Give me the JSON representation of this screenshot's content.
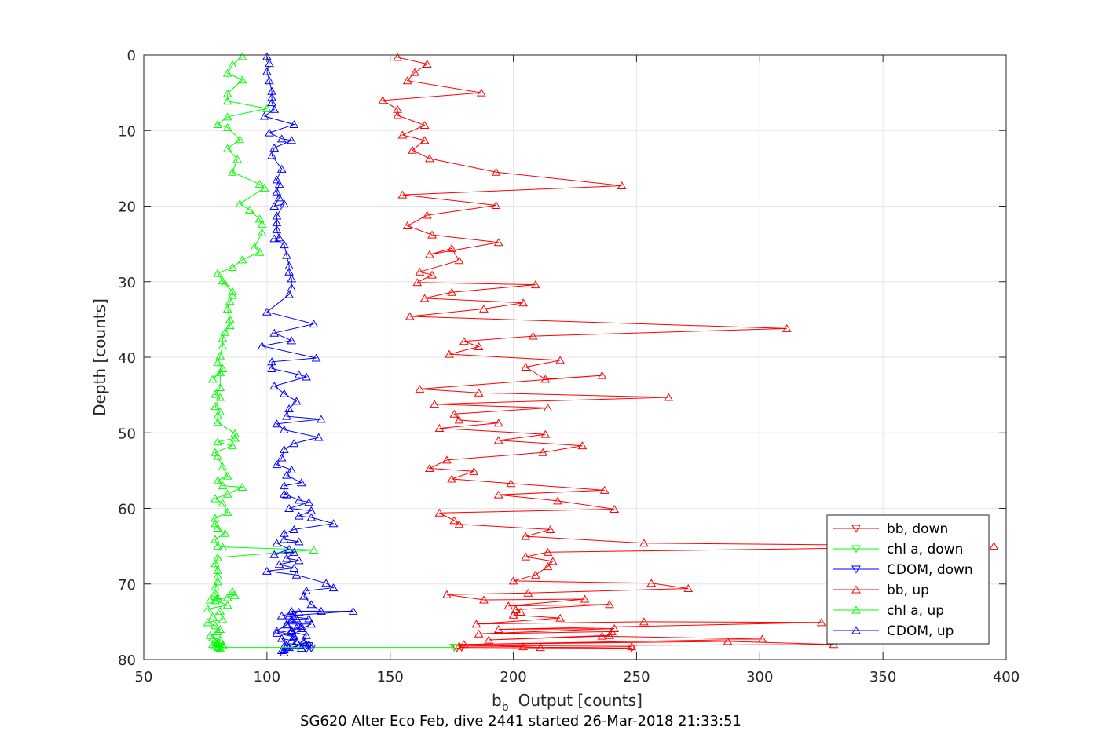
{
  "chart_data": {
    "type": "line",
    "xlabel_main": "b",
    "xlabel_sub": "b",
    "xlabel_rest": "Output [counts]",
    "ylabel": "Depth [counts]",
    "caption": "SG620 Alter Eco Feb, dive 2441 started 26-Mar-2018 21:33:51",
    "xlim": [
      50,
      400
    ],
    "ylim": [
      0,
      80
    ],
    "y_reversed": true,
    "grid": true,
    "xticks": [
      "50",
      "100",
      "150",
      "200",
      "250",
      "300",
      "350",
      "400"
    ],
    "yticks": [
      "0",
      "10",
      "20",
      "30",
      "40",
      "50",
      "60",
      "70",
      "80"
    ],
    "legend_position": "bottom-right",
    "series": [
      {
        "name": "bb, down",
        "color": "#ff0000",
        "marker": "triangle-down",
        "x": [
          177,
          179,
          248
        ],
        "y": [
          78.5,
          78.4,
          78.5
        ]
      },
      {
        "name": "chl a, down",
        "color": "#00ff00",
        "marker": "triangle-down",
        "x": [
          80,
          81,
          176
        ],
        "y": [
          78.6,
          78.4,
          78.4
        ]
      },
      {
        "name": "CDOM, down",
        "color": "#0000ff",
        "marker": "triangle-down",
        "x": [
          116,
          117,
          118
        ],
        "y": [
          78.6,
          78.2,
          78.5
        ]
      },
      {
        "name": "bb, up",
        "color": "#ff0000",
        "marker": "triangle-up",
        "x": [
          153,
          165,
          160,
          157,
          187,
          147,
          153,
          153,
          164,
          155,
          164,
          159,
          166,
          193,
          244,
          155,
          193,
          165,
          157,
          167,
          194,
          166,
          175,
          178,
          162,
          167,
          161,
          209,
          175,
          164,
          204,
          188,
          158,
          311,
          208,
          180,
          186,
          174,
          219,
          205,
          213,
          236,
          162,
          186,
          263,
          168,
          214,
          176,
          178,
          194,
          170,
          213,
          194,
          228,
          212,
          173,
          166,
          184,
          175,
          199,
          237,
          194,
          218,
          241,
          170,
          176,
          178,
          215,
          205,
          253,
          395,
          214,
          205,
          216,
          214,
          209,
          200,
          256,
          271,
          206,
          173,
          188,
          229,
          198,
          239,
          201,
          203,
          200,
          219,
          185,
          253,
          325,
          194,
          241,
          186,
          240,
          239,
          190,
          236,
          301,
          180,
          287,
          330,
          178,
          204,
          211,
          248
        ],
        "y": [
          0.3,
          1.2,
          2.3,
          3.4,
          5.0,
          6.0,
          7.2,
          8.0,
          9.3,
          10.6,
          11.3,
          12.6,
          13.7,
          15.5,
          17.3,
          18.5,
          19.9,
          21.2,
          22.6,
          23.8,
          24.8,
          26.4,
          25.6,
          27.2,
          28.7,
          29.1,
          30.1,
          30.4,
          31.4,
          32.2,
          32.8,
          33.6,
          34.6,
          36.2,
          37.2,
          37.9,
          38.6,
          39.6,
          40.4,
          41.3,
          42.9,
          42.4,
          44.2,
          44.7,
          45.3,
          46.2,
          46.7,
          47.5,
          48.3,
          48.7,
          49.4,
          50.2,
          51.0,
          51.7,
          52.6,
          53.6,
          54.7,
          55.1,
          56.1,
          56.7,
          57.6,
          58.2,
          59.0,
          60.1,
          60.6,
          61.6,
          62.1,
          62.8,
          63.7,
          64.6,
          65.0,
          65.8,
          66.4,
          67.0,
          67.7,
          68.8,
          69.6,
          69.9,
          70.6,
          71.2,
          71.4,
          72.1,
          72.0,
          72.9,
          72.7,
          73.4,
          73.7,
          74.1,
          74.5,
          75.3,
          75.0,
          75.1,
          76.0,
          75.9,
          76.6,
          76.3,
          76.8,
          77.4,
          76.9,
          77.3,
          78.0,
          77.6,
          78.0,
          78.2,
          78.3,
          78.4,
          78.3
        ]
      },
      {
        "name": "chl a, up",
        "color": "#00ff00",
        "marker": "triangle-up",
        "x": [
          90,
          86,
          84,
          90,
          84,
          84,
          100,
          84,
          80,
          84,
          89,
          84,
          88,
          86,
          97,
          99,
          89,
          93,
          97,
          98,
          98,
          95,
          97,
          90,
          86,
          80,
          83,
          82,
          86,
          86,
          85,
          84,
          85,
          85,
          83,
          82,
          82,
          81,
          80,
          82,
          78,
          81,
          81,
          79,
          81,
          79,
          81,
          80,
          80,
          87,
          87,
          80,
          86,
          79,
          80,
          82,
          84,
          80,
          82,
          90,
          84,
          79,
          82,
          84,
          79,
          79,
          80,
          83,
          79,
          80,
          82,
          119,
          80,
          79,
          80,
          80,
          80,
          79,
          79,
          80,
          77,
          84,
          86,
          87,
          79,
          84,
          76,
          78,
          81,
          82,
          76,
          79,
          81,
          80,
          77,
          78,
          81,
          80,
          78,
          79,
          81,
          80,
          82,
          81,
          79,
          80,
          82
        ],
        "y": [
          0.2,
          1.3,
          2.4,
          3.3,
          5.1,
          6.1,
          7.1,
          8.2,
          9.2,
          9.6,
          11.2,
          12.4,
          13.8,
          15.5,
          17.1,
          17.6,
          19.7,
          20.5,
          21.7,
          22.4,
          23.5,
          25.4,
          26.1,
          27.1,
          28.1,
          28.9,
          30.3,
          29.9,
          31.3,
          31.8,
          32.6,
          33.6,
          35.0,
          35.8,
          36.7,
          37.5,
          38.5,
          39.8,
          40.7,
          41.5,
          42.9,
          42.0,
          44.0,
          44.9,
          45.3,
          46.5,
          47.2,
          47.7,
          48.6,
          50.1,
          50.7,
          51.2,
          51.7,
          52.6,
          53.1,
          54.5,
          55.7,
          56.3,
          57.0,
          57.2,
          58.1,
          58.7,
          59.3,
          60.5,
          61.3,
          62.0,
          62.6,
          63.3,
          64.1,
          65.0,
          65.1,
          65.5,
          66.5,
          67.3,
          68.2,
          68.9,
          69.7,
          70.4,
          71.2,
          71.9,
          72.1,
          71.8,
          71.0,
          71.5,
          72.2,
          72.8,
          73.3,
          74.3,
          73.6,
          74.7,
          75.1,
          75.5,
          76.0,
          76.3,
          76.8,
          77.1,
          77.4,
          77.8,
          78.0,
          77.7,
          77.4,
          78.3,
          78.0,
          78.5,
          78.2,
          78.4,
          78.2
        ]
      },
      {
        "name": "CDOM, up",
        "color": "#0000ff",
        "marker": "triangle-up",
        "x": [
          100,
          101,
          100,
          101,
          102,
          102,
          102,
          103,
          99,
          111,
          101,
          106,
          110,
          103,
          102,
          106,
          104,
          105,
          104,
          105,
          103,
          107,
          104,
          104,
          104,
          105,
          103,
          107,
          108,
          109,
          109,
          110,
          110,
          109,
          100,
          119,
          103,
          110,
          98,
          120,
          102,
          102,
          113,
          116,
          103,
          107,
          112,
          109,
          108,
          122,
          104,
          107,
          121,
          111,
          107,
          106,
          104,
          110,
          108,
          114,
          107,
          107,
          108,
          113,
          117,
          109,
          118,
          113,
          118,
          127,
          111,
          107,
          107,
          113,
          104,
          109,
          103,
          111,
          108,
          113,
          105,
          111,
          100,
          112,
          124,
          127,
          116,
          115,
          118,
          122,
          110,
          112,
          108,
          104,
          111,
          110,
          106,
          108,
          107,
          107,
          115,
          114,
          107,
          113,
          106,
          109,
          112,
          111,
          104,
          110,
          112,
          114,
          118,
          108,
          110,
          117,
          106,
          113,
          135,
          109,
          114,
          110,
          116,
          115,
          117
        ],
        "y": [
          0.2,
          1.1,
          2.2,
          3.4,
          4.8,
          5.6,
          6.3,
          7.2,
          8.1,
          9.2,
          10.3,
          11.1,
          11.3,
          12.3,
          13.3,
          15.1,
          16.5,
          17.1,
          18.1,
          18.9,
          20.0,
          19.7,
          21.3,
          22.2,
          23.1,
          24.2,
          24.3,
          25.1,
          26.5,
          27.9,
          28.7,
          29.6,
          30.8,
          31.7,
          34.0,
          35.6,
          36.8,
          37.8,
          38.5,
          40.1,
          40.6,
          41.5,
          42.3,
          42.6,
          43.8,
          44.8,
          45.8,
          46.8,
          47.8,
          48.2,
          48.8,
          49.6,
          50.6,
          51.4,
          52.2,
          53.3,
          54.2,
          54.9,
          55.6,
          56.6,
          57.0,
          58.1,
          58.2,
          58.9,
          59.2,
          60.0,
          60.3,
          61.0,
          61.2,
          62.0,
          62.8,
          63.3,
          64.1,
          64.4,
          64.6,
          65.4,
          66.1,
          65.8,
          66.6,
          66.9,
          67.4,
          67.9,
          68.3,
          68.8,
          69.9,
          70.5,
          70.9,
          71.6,
          72.7,
          73.6,
          73.6,
          74.6,
          75.4,
          76.2,
          76.9,
          77.5,
          77.2,
          78.1,
          78.2,
          79.1,
          77.8,
          78.5,
          78.7,
          78.1,
          78.8,
          78.4,
          77.6,
          77.0,
          76.5,
          76.1,
          75.8,
          75.9,
          75.3,
          75.3,
          74.7,
          74.6,
          74.2,
          73.7,
          73.6,
          74.2,
          75.6,
          76.3,
          76.8,
          77.5,
          78.0
        ]
      }
    ]
  }
}
